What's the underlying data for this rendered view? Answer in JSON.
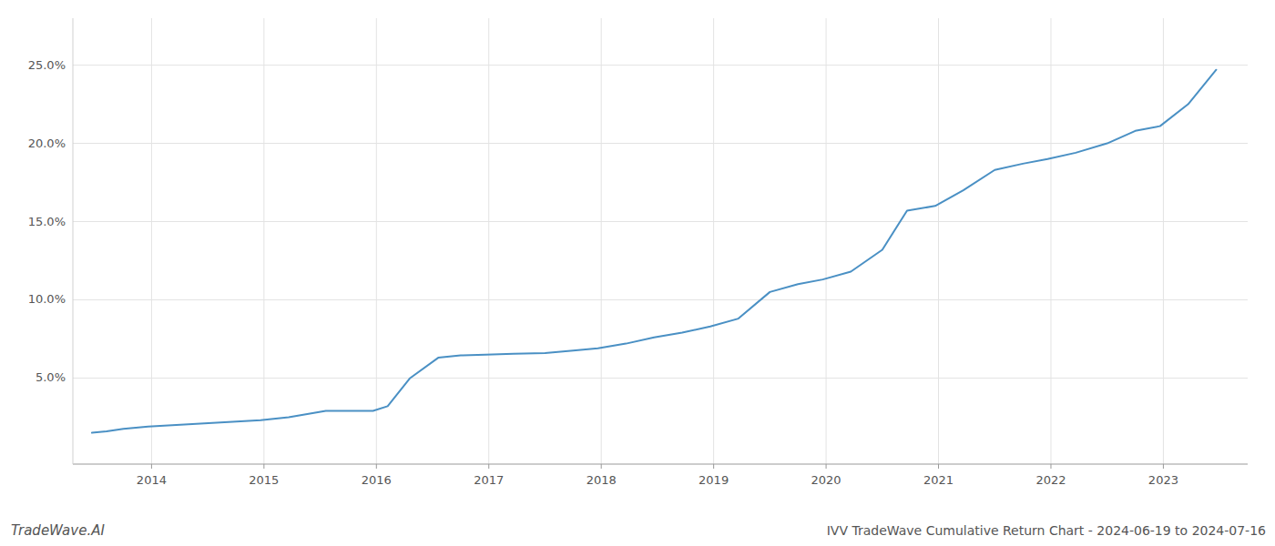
{
  "chart_data": {
    "type": "line",
    "title": "IVV TradeWave Cumulative Return Chart - 2024-06-19 to 2024-07-16",
    "annotations": [
      "TradeWave.AI"
    ],
    "x": [
      2013.47,
      2013.6,
      2013.75,
      2013.97,
      2014.22,
      2014.47,
      2014.72,
      2014.97,
      2015.22,
      2015.55,
      2015.97,
      2016.1,
      2016.3,
      2016.55,
      2016.75,
      2016.97,
      2017.22,
      2017.5,
      2017.75,
      2017.97,
      2018.22,
      2018.47,
      2018.72,
      2018.97,
      2019.22,
      2019.5,
      2019.75,
      2019.97,
      2020.22,
      2020.5,
      2020.72,
      2020.97,
      2021.22,
      2021.5,
      2021.75,
      2021.97,
      2022.22,
      2022.5,
      2022.75,
      2022.97,
      2023.22,
      2023.47
    ],
    "values": [
      1.5,
      1.6,
      1.75,
      1.9,
      2.0,
      2.1,
      2.2,
      2.3,
      2.5,
      2.9,
      2.9,
      3.2,
      5.0,
      6.3,
      6.45,
      6.5,
      6.55,
      6.6,
      6.75,
      6.9,
      7.2,
      7.6,
      7.9,
      8.3,
      8.8,
      10.5,
      11.0,
      11.3,
      11.8,
      13.2,
      15.7,
      16.0,
      17.0,
      18.3,
      18.7,
      19.0,
      19.4,
      20.0,
      20.8,
      21.1,
      22.5,
      24.7
    ],
    "color": "#4a90c4",
    "xlim": [
      2013.3,
      2023.75
    ],
    "xticks": [
      2014,
      2015,
      2016,
      2017,
      2018,
      2019,
      2020,
      2021,
      2022,
      2023
    ],
    "ylim": [
      -0.5,
      28
    ],
    "yticks": [
      {
        "value": 5.0,
        "label": "5.0%"
      },
      {
        "value": 10.0,
        "label": "10.0%"
      },
      {
        "value": 15.0,
        "label": "15.0%"
      },
      {
        "value": 20.0,
        "label": "20.0%"
      },
      {
        "value": 25.0,
        "label": "25.0%"
      }
    ],
    "grid": true
  }
}
